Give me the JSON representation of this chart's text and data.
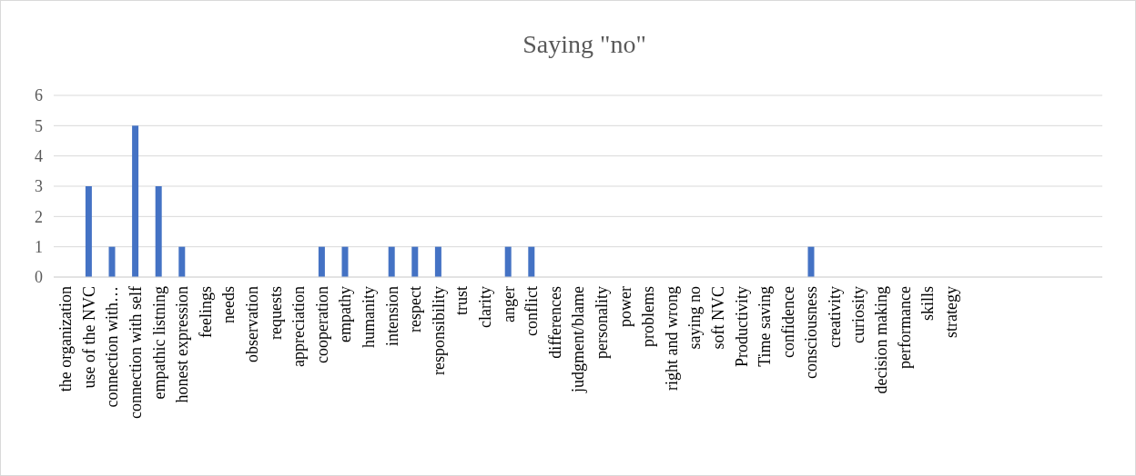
{
  "chart_data": {
    "type": "bar",
    "title": "Saying \"no\"",
    "categories": [
      "the organization",
      "use of the NVC",
      "connection with…",
      "connection with self",
      "empathic listning",
      "honest expression",
      "feelings",
      "needs",
      "observation",
      "requests",
      "appreciation",
      "cooperation",
      "empathy",
      "humanity",
      "intension",
      "respect",
      "responsibility",
      "trust",
      "clarity",
      "anger",
      "conflict",
      "differences",
      "judgment/blame",
      "personality",
      "power",
      "problems",
      "right and wrong",
      "saying no",
      "soft NVC",
      "Productivity",
      "Time saving",
      "confidence",
      "consciousness",
      "creativity",
      "curiosity",
      "decision making",
      "performance",
      "skills",
      "strategy",
      null,
      null,
      null,
      null,
      null,
      null
    ],
    "values": [
      0,
      3,
      1,
      5,
      3,
      1,
      0,
      0,
      0,
      0,
      0,
      1,
      1,
      0,
      1,
      1,
      1,
      0,
      0,
      1,
      1,
      0,
      0,
      0,
      0,
      0,
      0,
      0,
      0,
      0,
      0,
      0,
      1,
      0,
      0,
      0,
      0,
      0,
      0,
      0,
      0,
      0,
      0,
      0,
      0
    ],
    "color": "#4472c4",
    "ylim": [
      0,
      6
    ],
    "yticks": [
      0,
      1,
      2,
      3,
      4,
      5,
      6
    ],
    "grid": "y"
  }
}
